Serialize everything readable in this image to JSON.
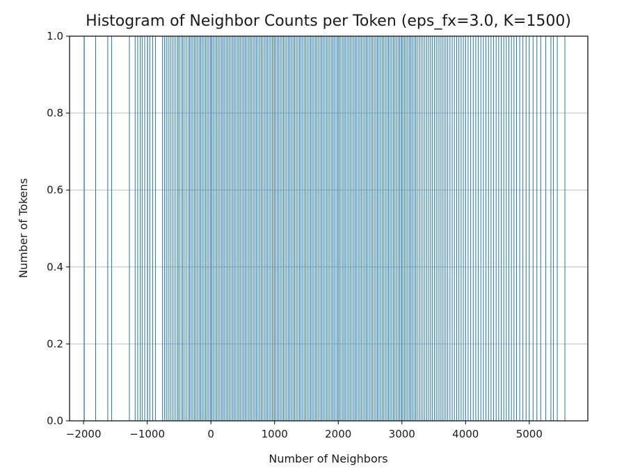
{
  "chart_data": {
    "type": "bar",
    "title": "Histogram of Neighbor Counts per Token (eps_fx=3.0, K=1500)",
    "xlabel": "Number of Neighbors",
    "ylabel": "Number of Tokens",
    "xlim": [
      -2220,
      5920
    ],
    "ylim": [
      0,
      1
    ],
    "xticks": [
      -2000,
      -1000,
      0,
      1000,
      2000,
      3000,
      4000,
      5000
    ],
    "xtick_labels": [
      "−2000",
      "−1000",
      "0",
      "1000",
      "2000",
      "3000",
      "4000",
      "5000"
    ],
    "yticks": [
      0.0,
      0.2,
      0.4,
      0.6,
      0.8,
      1.0
    ],
    "ytick_labels": [
      "0.0",
      "0.2",
      "0.4",
      "0.6",
      "0.8",
      "1.0"
    ],
    "grid": true,
    "bar_color": "#1f77b4",
    "edge_color": "#ffffff",
    "bar_value": 1,
    "bar_positions": [
      -1988,
      -1810,
      -1620,
      -1560,
      -1280,
      -1190,
      -1150,
      -1110,
      -1080,
      -1040,
      -995,
      -960,
      -915,
      -870,
      -760,
      -730,
      -700,
      -670,
      -640,
      -610,
      -580,
      -550,
      -520,
      -500,
      -470,
      -445,
      -420,
      -390,
      -360,
      -335,
      -310,
      -285,
      -260,
      -235,
      -210,
      -185,
      -160,
      -135,
      -110,
      -85,
      -60,
      -35,
      -10,
      15,
      40,
      65,
      90,
      115,
      140,
      165,
      190,
      215,
      240,
      265,
      290,
      315,
      340,
      365,
      390,
      415,
      440,
      465,
      490,
      515,
      540,
      565,
      590,
      615,
      640,
      665,
      690,
      715,
      740,
      765,
      790,
      815,
      840,
      865,
      890,
      915,
      940,
      965,
      990,
      1015,
      1040,
      1065,
      1090,
      1115,
      1140,
      1165,
      1190,
      1215,
      1240,
      1265,
      1290,
      1315,
      1340,
      1365,
      1390,
      1415,
      1440,
      1465,
      1490,
      1515,
      1540,
      1565,
      1590,
      1615,
      1640,
      1665,
      1690,
      1715,
      1740,
      1765,
      1790,
      1815,
      1840,
      1865,
      1890,
      1915,
      1940,
      1965,
      1990,
      2015,
      2040,
      2065,
      2090,
      2115,
      2140,
      2165,
      2190,
      2215,
      2240,
      2265,
      2290,
      2315,
      2340,
      2365,
      2390,
      2415,
      2440,
      2465,
      2490,
      2515,
      2540,
      2565,
      2590,
      2615,
      2640,
      2665,
      2690,
      2715,
      2740,
      2765,
      2790,
      2815,
      2840,
      2865,
      2890,
      2915,
      2940,
      2965,
      2990,
      3015,
      3040,
      3065,
      3090,
      3115,
      3140,
      3165,
      3190,
      3215,
      3240,
      3270,
      3300,
      3330,
      3360,
      3390,
      3420,
      3450,
      3480,
      3510,
      3540,
      3570,
      3600,
      3630,
      3660,
      3690,
      3720,
      3755,
      3790,
      3825,
      3860,
      3895,
      3930,
      3965,
      4000,
      4040,
      4080,
      4120,
      4160,
      4200,
      4240,
      4280,
      4320,
      4360,
      4400,
      4440,
      4480,
      4520,
      4560,
      4600,
      4640,
      4680,
      4720,
      4760,
      4800,
      4850,
      4900,
      4950,
      5000,
      5060,
      5120,
      5180,
      5260,
      5340,
      5380,
      5440,
      5560
    ]
  }
}
